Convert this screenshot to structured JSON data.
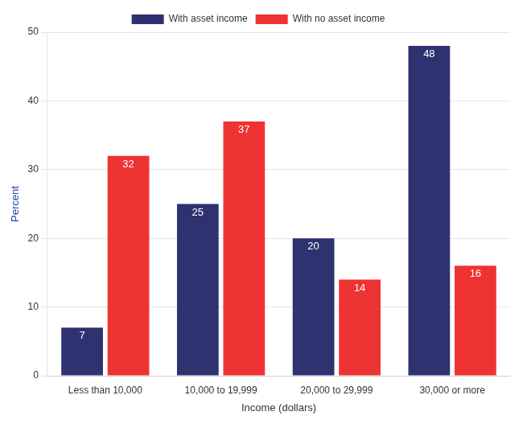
{
  "chart_data": {
    "type": "bar",
    "categories": [
      "Less than 10,000",
      "10,000 to 19,999",
      "20,000 to 29,999",
      "30,000 or more"
    ],
    "series": [
      {
        "name": "With asset income",
        "color": "#2e3270",
        "values": [
          7,
          25,
          20,
          48
        ]
      },
      {
        "name": "With no asset income",
        "color": "#ee3333",
        "values": [
          32,
          37,
          14,
          16
        ]
      }
    ],
    "xlabel": "Income (dollars)",
    "ylabel": "Percent",
    "ylim": [
      0,
      50
    ],
    "yticks": [
      0,
      10,
      20,
      30,
      40,
      50
    ],
    "grid": true,
    "legend": "top",
    "data_labels": true
  }
}
